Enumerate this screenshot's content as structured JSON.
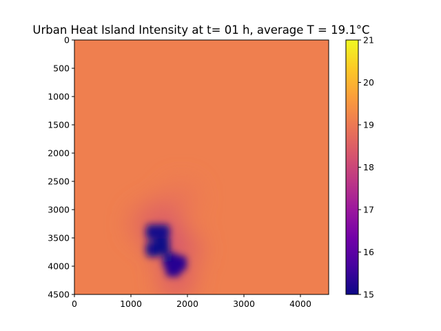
{
  "chart_data": {
    "type": "heatmap",
    "title": "Urban Heat Island Intensity at t= 01 h, average T = 19.1°C",
    "xlabel": "",
    "ylabel": "",
    "xlim": [
      0,
      4500
    ],
    "ylim": [
      4500,
      0
    ],
    "x_ticks": [
      "0",
      "1000",
      "2000",
      "3000",
      "4000"
    ],
    "y_ticks": [
      "0",
      "500",
      "1000",
      "1500",
      "2000",
      "2500",
      "3000",
      "3500",
      "4000",
      "4500"
    ],
    "colorbar": {
      "colormap": "plasma",
      "range": [
        15,
        21
      ],
      "ticks": [
        "15",
        "16",
        "17",
        "18",
        "19",
        "20",
        "21"
      ]
    },
    "background_value": 19.1,
    "cold_spots": [
      {
        "x": 1400,
        "y": 3400,
        "value": 15.1
      },
      {
        "x": 1550,
        "y": 3400,
        "value": 15.1
      },
      {
        "x": 1400,
        "y": 3700,
        "value": 15.1
      },
      {
        "x": 1550,
        "y": 3650,
        "value": 15.0
      },
      {
        "x": 1700,
        "y": 3900,
        "value": 15.2
      },
      {
        "x": 1850,
        "y": 3950,
        "value": 15.3
      },
      {
        "x": 1750,
        "y": 4050,
        "value": 15.3
      }
    ],
    "halo_spots": [
      {
        "x": 1650,
        "y": 3600,
        "value": 17.8
      },
      {
        "x": 1600,
        "y": 3100,
        "value": 18.4
      },
      {
        "x": 1950,
        "y": 3700,
        "value": 18.5
      },
      {
        "x": 1800,
        "y": 4250,
        "value": 18.4
      },
      {
        "x": 1300,
        "y": 3250,
        "value": 18.6
      },
      {
        "x": 1900,
        "y": 2800,
        "value": 18.9
      }
    ]
  }
}
